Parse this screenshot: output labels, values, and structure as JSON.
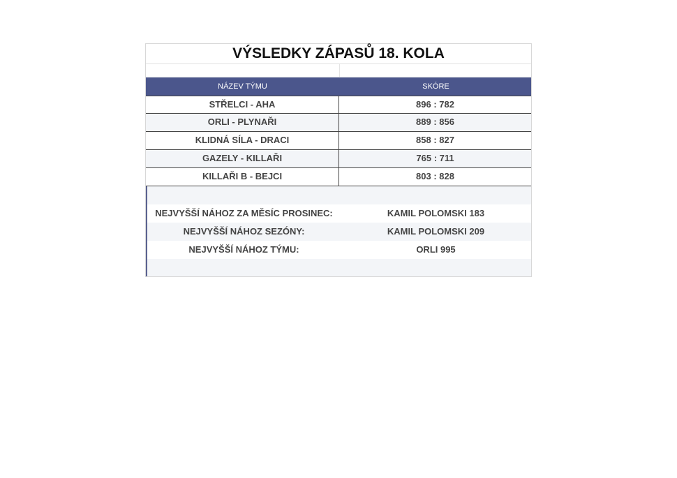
{
  "title": "VÝSLEDKY ZÁPASŮ 18. KOLA",
  "header": {
    "team": "NÁZEV TÝMU",
    "score": "SKÓRE"
  },
  "matches": [
    {
      "team": "STŘELCI - AHA",
      "score": "896 : 782"
    },
    {
      "team": "ORLI - PLYNAŘI",
      "score": "889 : 856"
    },
    {
      "team": "KLIDNÁ SÍLA - DRACI",
      "score": "858 : 827"
    },
    {
      "team": "GAZELY - KILLAŘI",
      "score": "765 : 711"
    },
    {
      "team": "KILLAŘI B - BEJCI",
      "score": "803 : 828"
    }
  ],
  "stats": [
    {
      "label": "NEJVYŠŠÍ NÁHOZ ZA MĚSÍC PROSINEC:",
      "value": "KAMIL POLOMSKI 183"
    },
    {
      "label": "NEJVYŠŠÍ NÁHOZ SEZÓNY:",
      "value": "KAMIL POLOMSKI 209"
    },
    {
      "label": "NEJVYŠŠÍ NÁHOZ TÝMU:",
      "value": "ORLI 995"
    }
  ]
}
